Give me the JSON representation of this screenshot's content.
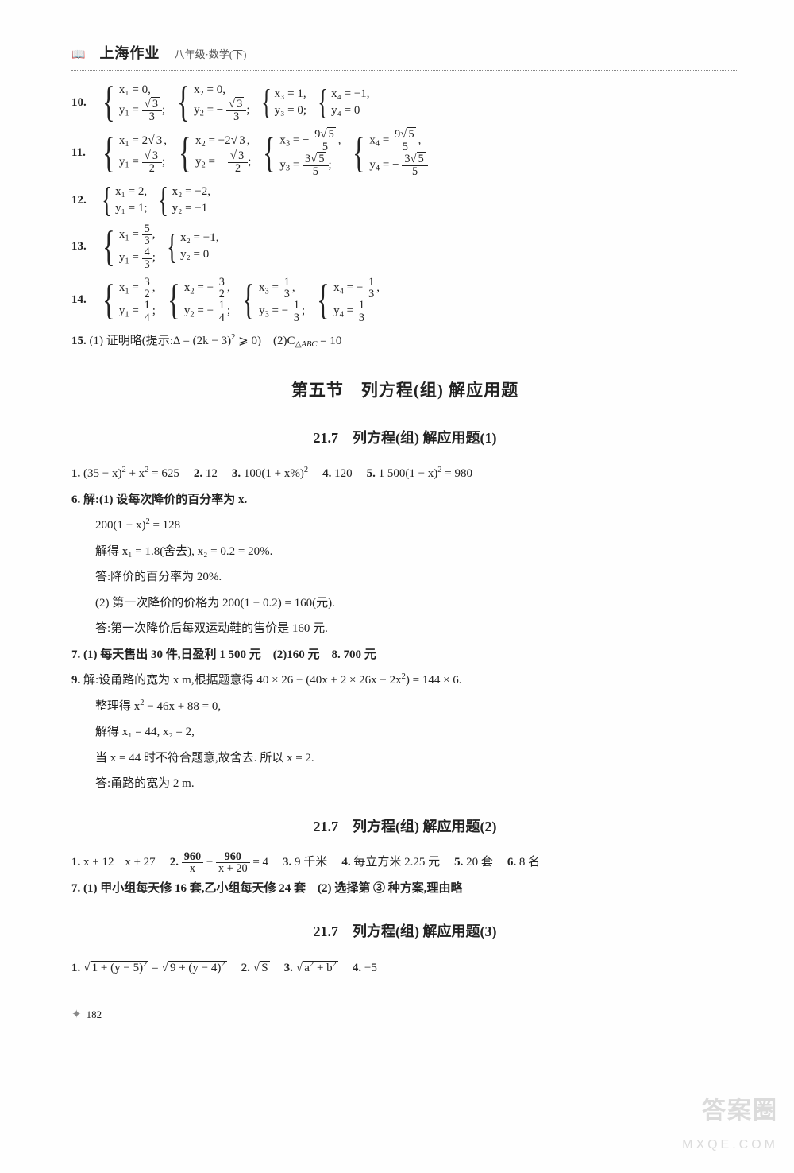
{
  "header": {
    "logo": "📖",
    "book": "上海作业",
    "sub": "八年级·数学(下)"
  },
  "q10": {
    "num": "10.",
    "s1a": "x₁ = 0,",
    "s1b_html": "y<sub>1</sub> = <span class='frac'><span class='n'><span class='radic'>√</span><span class='sqrt'>3</span></span><span class='d'>3</span></span>;",
    "s2a": "x₂ = 0,",
    "s2b_html": "y<sub>2</sub> = − <span class='frac'><span class='n'><span class='radic'>√</span><span class='sqrt'>3</span></span><span class='d'>3</span></span>;",
    "s3a": "x₃ = 1,",
    "s3b": "y₃ = 0;",
    "s4a": "x₄ = −1,",
    "s4b": "y₄ = 0"
  },
  "q11": {
    "num": "11.",
    "s1a_html": "x<sub>1</sub> = 2<span class='radic'>√</span><span class='sqrt'>3</span>,",
    "s1b_html": "y<sub>1</sub> = <span class='frac'><span class='n'><span class='radic'>√</span><span class='sqrt'>3</span></span><span class='d'>2</span></span>;",
    "s2a_html": "x<sub>2</sub> = −2<span class='radic'>√</span><span class='sqrt'>3</span>,",
    "s2b_html": "y<sub>2</sub> = − <span class='frac'><span class='n'><span class='radic'>√</span><span class='sqrt'>3</span></span><span class='d'>2</span></span>;",
    "s3a_html": "x<sub>3</sub> = − <span class='frac'><span class='n'>9<span class='radic'>√</span><span class='sqrt'>5</span></span><span class='d'>5</span></span>,",
    "s3b_html": "y<sub>3</sub> = <span class='frac'><span class='n'>3<span class='radic'>√</span><span class='sqrt'>5</span></span><span class='d'>5</span></span>;",
    "s4a_html": "x<sub>4</sub> = <span class='frac'><span class='n'>9<span class='radic'>√</span><span class='sqrt'>5</span></span><span class='d'>5</span></span>,",
    "s4b_html": "y<sub>4</sub> = − <span class='frac'><span class='n'>3<span class='radic'>√</span><span class='sqrt'>5</span></span><span class='d'>5</span></span>"
  },
  "q12": {
    "num": "12.",
    "s1a": "x₁ = 2,",
    "s1b": "y₁ = 1;",
    "s2a": "x₂ = −2,",
    "s2b": "y₂ = −1"
  },
  "q13": {
    "num": "13.",
    "s1a_html": "x<sub>1</sub> = <span class='frac'><span class='n'>5</span><span class='d'>3</span></span>,",
    "s1b_html": "y<sub>1</sub> = <span class='frac'><span class='n'>4</span><span class='d'>3</span></span>;",
    "s2a": "x₂ = −1,",
    "s2b": "y₂ = 0"
  },
  "q14": {
    "num": "14.",
    "s1a_html": "x<sub>1</sub> = <span class='frac'><span class='n'>3</span><span class='d'>2</span></span>,",
    "s1b_html": "y<sub>1</sub> = <span class='frac'><span class='n'>1</span><span class='d'>4</span></span>;",
    "s2a_html": "x<sub>2</sub> = − <span class='frac'><span class='n'>3</span><span class='d'>2</span></span>,",
    "s2b_html": "y<sub>2</sub> = − <span class='frac'><span class='n'>1</span><span class='d'>4</span></span>;",
    "s3a_html": "x<sub>3</sub> = <span class='frac'><span class='n'>1</span><span class='d'>3</span></span>,",
    "s3b_html": "y<sub>3</sub> = − <span class='frac'><span class='n'>1</span><span class='d'>3</span></span>;",
    "s4a_html": "x<sub>4</sub> = − <span class='frac'><span class='n'>1</span><span class='d'>3</span></span>,",
    "s4b_html": "y<sub>4</sub> = <span class='frac'><span class='n'>1</span><span class='d'>3</span></span>"
  },
  "q15_html": "<span class='n'>15.</span> (1) 证明略(提示:Δ = (2k − 3)<sup>2</sup> ⩾ 0)　(2)C<sub>△<i>ABC</i></sub> = 10",
  "sec5_title": "第五节　列方程(组) 解应用题",
  "s217_1": "21.7　列方程(组) 解应用题(1)",
  "a1_line1_html": "<span class='n'>1.</span> (35 − x)<sup>2</sup> + x<sup>2</sup> = 625<span class='sep'></span><span class='n'>2.</span> 12<span class='sep'></span><span class='n'>3.</span> 100(1 + x%)<sup>2</sup><span class='sep'></span><span class='n'>4.</span> 120<span class='sep'></span><span class='n'>5.</span> 1 500(1 − x)<sup>2</sup> = 980",
  "a1_q6a": "6. 解:(1) 设每次降价的百分率为 x.",
  "a1_q6b_html": "200(1 − x)<sup>2</sup> = 128",
  "a1_q6c": "解得 x₁ = 1.8(舍去), x₂ = 0.2 = 20%.",
  "a1_q6d": "答:降价的百分率为 20%.",
  "a1_q6e": "(2) 第一次降价的价格为 200(1 − 0.2) = 160(元).",
  "a1_q6f": "答:第一次降价后每双运动鞋的售价是 160 元.",
  "a1_q7": "7. (1) 每天售出 30 件,日盈利 1 500 元　(2)160 元　8. 700 元",
  "a1_q9a_html": "<span class='n'>9.</span> 解:设甬路的宽为 x m,根据题意得 40 × 26 − (40x + 2 × 26x − 2x<sup>2</sup>) = 144 × 6.",
  "a1_q9b_html": "整理得 x<sup>2</sup> − 46x + 88 = 0,",
  "a1_q9c": "解得 x₁ = 44, x₂ = 2,",
  "a1_q9d": "当 x = 44 时不符合题意,故舍去. 所以 x = 2.",
  "a1_q9e": "答:甬路的宽为 2 m.",
  "s217_2": "21.7　列方程(组) 解应用题(2)",
  "a2_line1_html": "<span class='n'>1.</span> x + 12<span class='sep2'></span> x + 27<span class='sep'></span><span class='n'>2.</span> <span class='frac'><span class='n'>960</span><span class='d'>x</span></span> − <span class='frac'><span class='n'>960</span><span class='d'>x + 20</span></span> = 4<span class='sep'></span><span class='n'>3.</span> 9 千米<span class='sep'></span><span class='n'>4.</span> 每立方米 2.25 元<span class='sep'></span><span class='n'>5.</span> 20 套<span class='sep'></span><span class='n'>6.</span> 8 名",
  "a2_q7": "7. (1) 甲小组每天修 16 套,乙小组每天修 24 套　(2) 选择第 ③ 种方案,理由略",
  "s217_3": "21.7　列方程(组) 解应用题(3)",
  "a3_line1_html": "<span class='n'>1.</span> <span class='radic'>√</span><span class='sqrt'>1 + (y − 5)<sup>2</sup></span> = <span class='radic'>√</span><span class='sqrt'>9 + (y − 4)<sup>2</sup></span><span class='sep'></span><span class='n'>2.</span> <span class='radic'>√</span><span class='sqrt'>S</span><span class='sep'></span><span class='n'>3.</span> <span class='radic'>√</span><span class='sqrt'>a<sup>2</sup> + b<sup>2</sup></span><span class='sep'></span><span class='n'>4.</span> −5",
  "page_num": "182",
  "watermark1": "答案圈",
  "watermark2": "MXQE.COM"
}
